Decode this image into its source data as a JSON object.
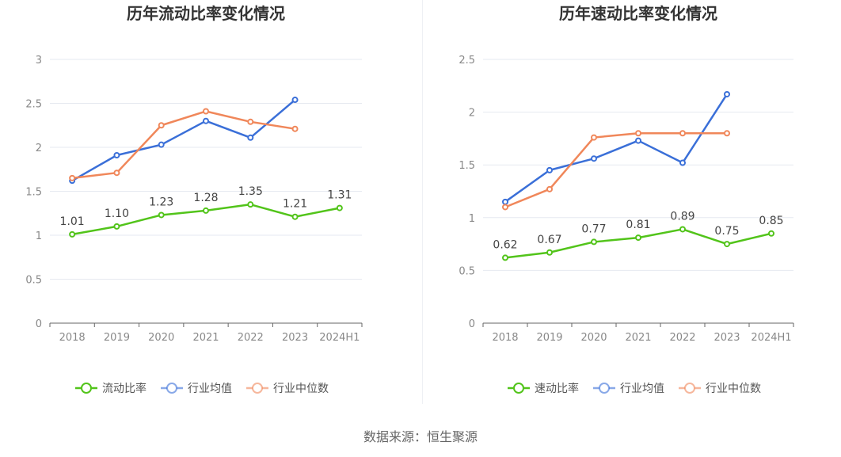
{
  "source_text": "数据来源：恒生聚源",
  "colors": {
    "company": "#52c41a",
    "industry_avg": "#3a6fd8",
    "industry_median": "#f0875a",
    "grid": "#e6e9f0",
    "axis": "#666666",
    "tick_text": "#888888",
    "title": "#333333",
    "legend_text": "#555555"
  },
  "chart_data": [
    {
      "type": "line",
      "title": "历年流动比率变化情况",
      "categories": [
        "2018",
        "2019",
        "2020",
        "2021",
        "2022",
        "2023",
        "2024H1"
      ],
      "ylim": [
        0,
        3
      ],
      "yticks": [
        0,
        0.5,
        1,
        1.5,
        2,
        2.5,
        3
      ],
      "ytick_labels": [
        "0",
        "0.5",
        "1",
        "1.5",
        "2",
        "2.5",
        "3"
      ],
      "grid": true,
      "legend_position": "bottom",
      "series": [
        {
          "name": "流动比率",
          "color_key": "company",
          "values": [
            1.01,
            1.1,
            1.23,
            1.28,
            1.35,
            1.21,
            1.31
          ],
          "labels": [
            "1.01",
            "1.10",
            "1.23",
            "1.28",
            "1.35",
            "1.21",
            "1.31"
          ]
        },
        {
          "name": "行业均值",
          "color_key": "industry_avg",
          "values": [
            1.62,
            1.91,
            2.03,
            2.3,
            2.11,
            2.54,
            null
          ]
        },
        {
          "name": "行业中位数",
          "color_key": "industry_median",
          "values": [
            1.65,
            1.71,
            2.25,
            2.41,
            2.29,
            2.21,
            null
          ]
        }
      ]
    },
    {
      "type": "line",
      "title": "历年速动比率变化情况",
      "categories": [
        "2018",
        "2019",
        "2020",
        "2021",
        "2022",
        "2023",
        "2024H1"
      ],
      "ylim": [
        0,
        2.5
      ],
      "yticks": [
        0,
        0.5,
        1,
        1.5,
        2,
        2.5
      ],
      "ytick_labels": [
        "0",
        "0.5",
        "1",
        "1.5",
        "2",
        "2.5"
      ],
      "grid": true,
      "legend_position": "bottom",
      "series": [
        {
          "name": "速动比率",
          "color_key": "company",
          "values": [
            0.62,
            0.67,
            0.77,
            0.81,
            0.89,
            0.75,
            0.85
          ],
          "labels": [
            "0.62",
            "0.67",
            "0.77",
            "0.81",
            "0.89",
            "0.75",
            "0.85"
          ]
        },
        {
          "name": "行业均值",
          "color_key": "industry_avg",
          "values": [
            1.15,
            1.45,
            1.56,
            1.73,
            1.52,
            2.17,
            null
          ]
        },
        {
          "name": "行业中位数",
          "color_key": "industry_median",
          "values": [
            1.1,
            1.27,
            1.76,
            1.8,
            1.8,
            1.8,
            null
          ]
        }
      ]
    }
  ]
}
